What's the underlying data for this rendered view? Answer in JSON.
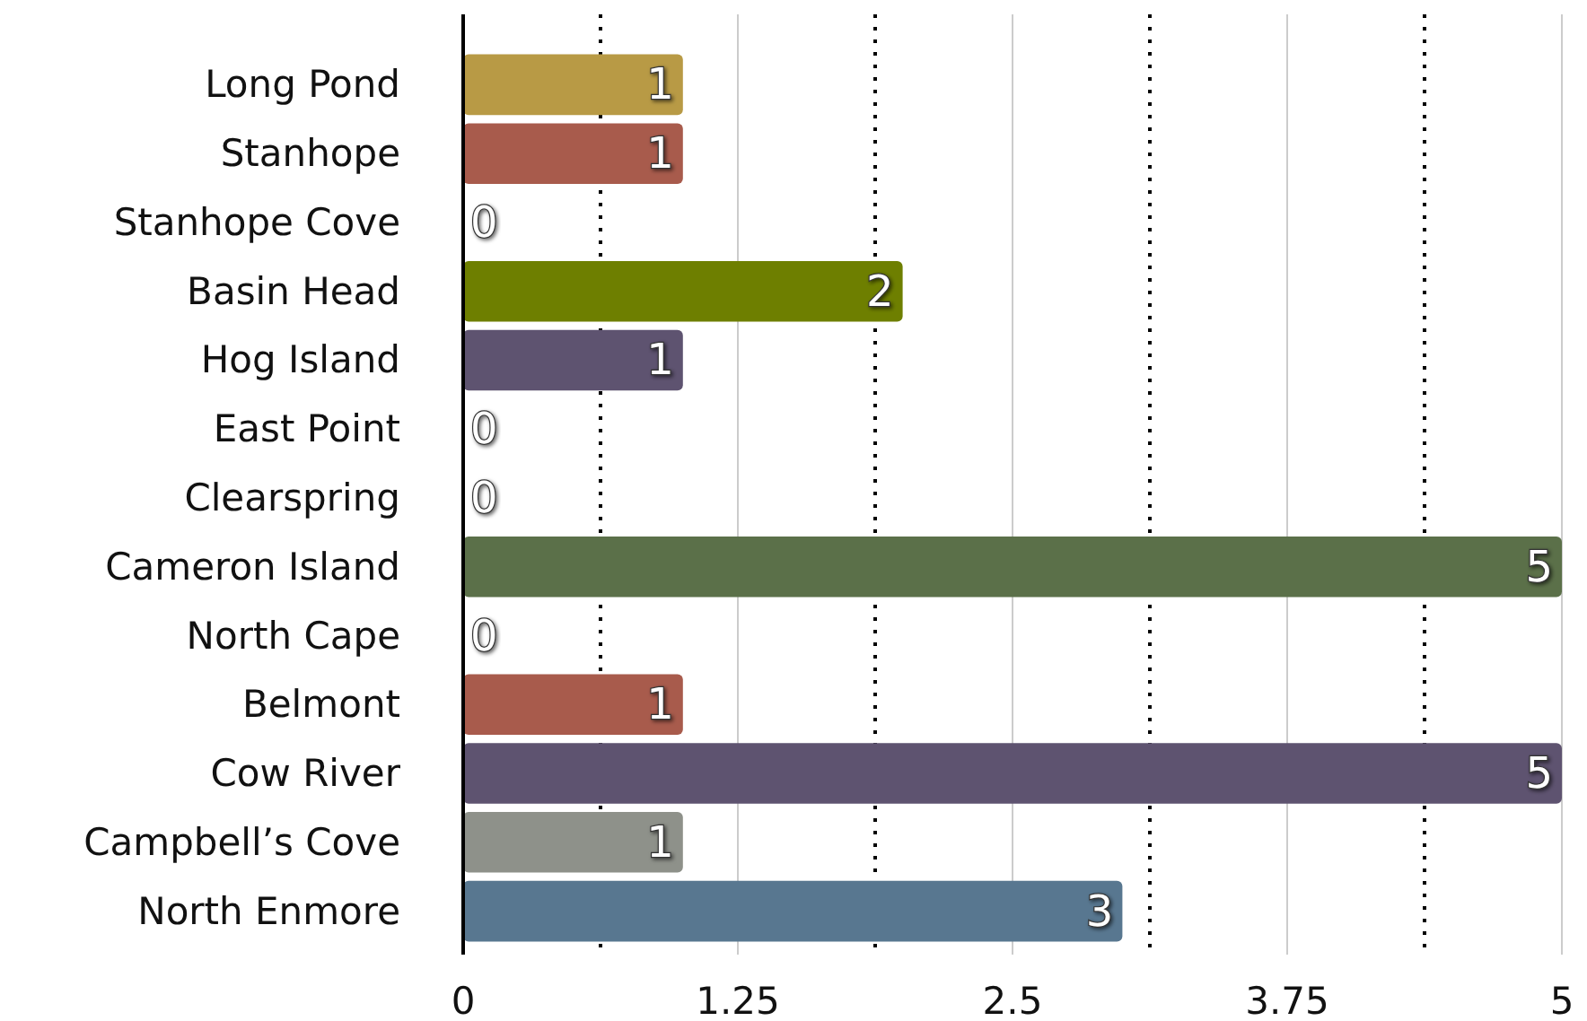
{
  "chart_data": {
    "type": "bar",
    "orientation": "horizontal",
    "categories": [
      "Long Pond",
      "Stanhope",
      "Stanhope Cove",
      "Basin Head",
      "Hog Island",
      "East Point",
      "Clearspring",
      "Cameron Island",
      "North Cape",
      "Belmont",
      "Cow River",
      "Campbell’s Cove",
      "North Enmore"
    ],
    "values": [
      1,
      1,
      0,
      2,
      1,
      0,
      0,
      5,
      0,
      1,
      5,
      1,
      3
    ],
    "colors": [
      "#b89a45",
      "#a85b4c",
      "#8e918a",
      "#6e7f00",
      "#5e5370",
      "#587790",
      "#8e918a",
      "#5b7049",
      "#587790",
      "#a85b4c",
      "#5e5370",
      "#8e918a",
      "#587790"
    ],
    "xlim": [
      0,
      5
    ],
    "xticks": [
      0,
      {
        "value": 0.625,
        "label": null
      },
      1.25,
      {
        "value": 1.875,
        "label": null
      },
      2.5,
      {
        "value": 3.125,
        "label": null
      },
      3.75,
      {
        "value": 4.375,
        "label": null
      },
      5
    ],
    "grid": "x",
    "data_labels": true
  }
}
